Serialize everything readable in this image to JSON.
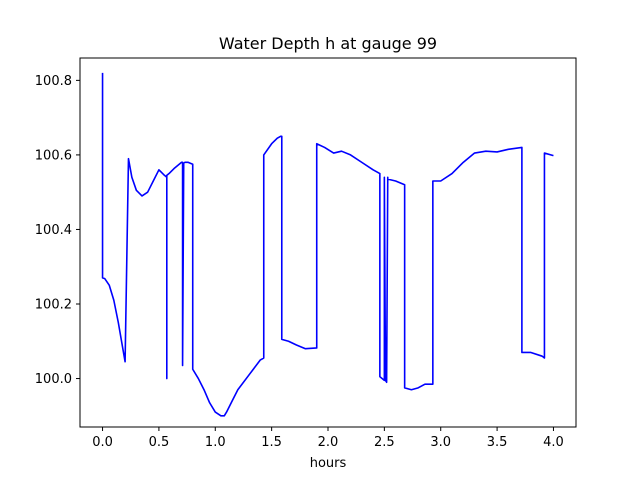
{
  "chart_data": {
    "type": "line",
    "title": "Water Depth h at gauge 99",
    "xlabel": "hours",
    "ylabel": "",
    "xlim": [
      -0.2,
      4.2
    ],
    "ylim": [
      99.87,
      100.86
    ],
    "xticks": [
      0.0,
      0.5,
      1.0,
      1.5,
      2.0,
      2.5,
      3.0,
      3.5,
      4.0
    ],
    "xtick_labels": [
      "0.0",
      "0.5",
      "1.0",
      "1.5",
      "2.0",
      "2.5",
      "3.0",
      "3.5",
      "4.0"
    ],
    "yticks": [
      100.0,
      100.2,
      100.4,
      100.6,
      100.8
    ],
    "ytick_labels": [
      "100.0",
      "100.2",
      "100.4",
      "100.6",
      "100.8"
    ],
    "grid": false,
    "series": [
      {
        "color": "#0000ff",
        "x": [
          0.0,
          0.0,
          0.02,
          0.06,
          0.1,
          0.14,
          0.18,
          0.2,
          0.23,
          0.23,
          0.26,
          0.3,
          0.35,
          0.4,
          0.45,
          0.5,
          0.55,
          0.57,
          0.57,
          0.57,
          0.59,
          0.64,
          0.7,
          0.71,
          0.71,
          0.72,
          0.73,
          0.76,
          0.8,
          0.8,
          0.85,
          0.9,
          0.95,
          1.0,
          1.05,
          1.08,
          1.1,
          1.15,
          1.2,
          1.3,
          1.4,
          1.43,
          1.43,
          1.5,
          1.55,
          1.58,
          1.59,
          1.59,
          1.65,
          1.72,
          1.8,
          1.9,
          1.9,
          1.97,
          2.05,
          2.12,
          2.2,
          2.3,
          2.4,
          2.46,
          2.46,
          2.5,
          2.5,
          2.51,
          2.52,
          2.53,
          2.53,
          2.6,
          2.68,
          2.68,
          2.74,
          2.8,
          2.86,
          2.93,
          2.93,
          3.0,
          3.1,
          3.2,
          3.3,
          3.4,
          3.5,
          3.6,
          3.72,
          3.72,
          3.8,
          3.9,
          3.92,
          3.92,
          4.0
        ],
        "y": [
          100.82,
          100.27,
          100.268,
          100.25,
          100.21,
          100.15,
          100.08,
          100.045,
          100.59,
          100.59,
          100.54,
          100.505,
          100.49,
          100.5,
          100.53,
          100.56,
          100.545,
          100.54,
          100.0,
          100.545,
          100.55,
          100.565,
          100.58,
          100.58,
          100.035,
          100.578,
          100.58,
          100.58,
          100.575,
          100.025,
          100.0,
          99.97,
          99.935,
          99.91,
          99.9,
          99.9,
          99.91,
          99.94,
          99.97,
          100.01,
          100.05,
          100.055,
          100.6,
          100.63,
          100.645,
          100.65,
          100.65,
          100.105,
          100.1,
          100.09,
          100.08,
          100.082,
          100.63,
          100.62,
          100.605,
          100.61,
          100.6,
          100.58,
          100.56,
          100.55,
          100.005,
          99.995,
          100.54,
          99.995,
          99.99,
          100.54,
          100.535,
          100.53,
          100.52,
          99.975,
          99.97,
          99.975,
          99.985,
          99.985,
          100.53,
          100.53,
          100.55,
          100.58,
          100.605,
          100.61,
          100.608,
          100.615,
          100.62,
          100.07,
          100.07,
          100.06,
          100.055,
          100.605,
          100.598
        ]
      }
    ]
  }
}
